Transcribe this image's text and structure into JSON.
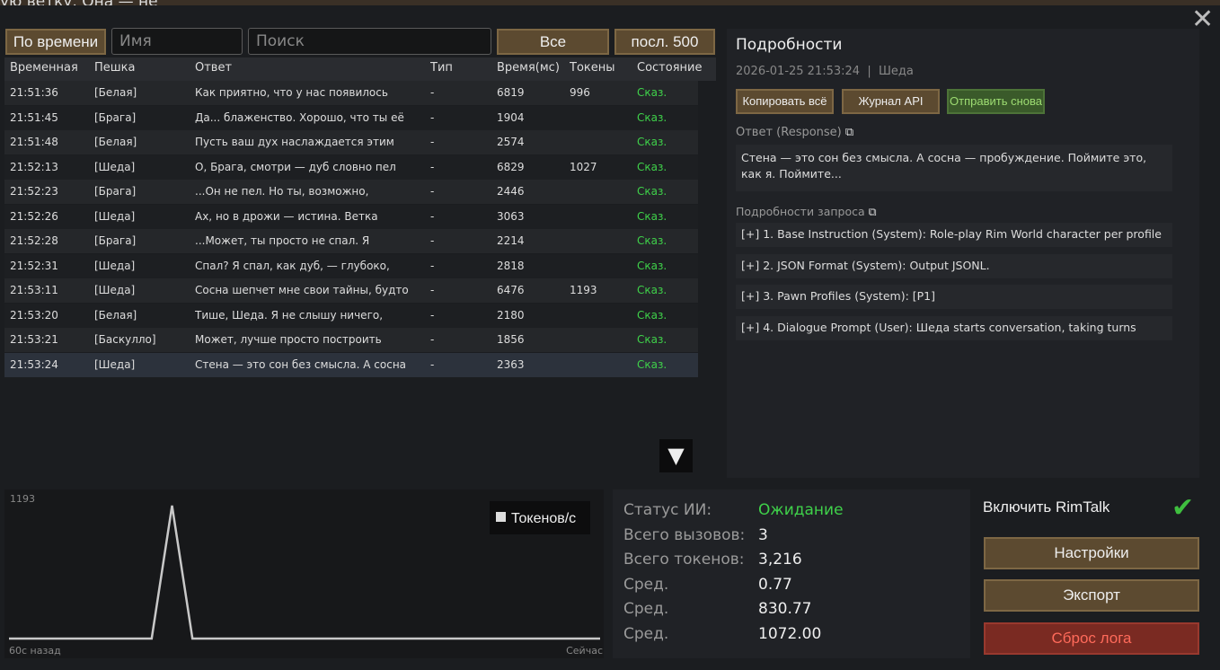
{
  "background_text": "ую ветку. Она — не",
  "toolbar": {
    "sort_button": "По времени",
    "name_placeholder": "Имя",
    "search_placeholder": "Поиск",
    "filter_button": "Все",
    "limit_button": "посл. 500"
  },
  "table": {
    "headers": [
      "Временная",
      "Пешка",
      "Ответ",
      "Тип",
      "Время(мс)",
      "Токены",
      "Состояние"
    ],
    "rows": [
      [
        "21:51:36",
        "[Белая]",
        "Как приятно, что у нас появилось",
        "-",
        6819,
        996,
        "Сказ."
      ],
      [
        "21:51:45",
        "[Брага]",
        "Да... блаженство. Хорошо, что ты её",
        "-",
        1904,
        null,
        "Сказ."
      ],
      [
        "21:51:48",
        "[Белая]",
        "Пусть ваш дух наслаждается этим",
        "-",
        2574,
        null,
        "Сказ."
      ],
      [
        "21:52:13",
        "[Шеда]",
        "О, Брага, смотри — дуб словно пел",
        "-",
        6829,
        1027,
        "Сказ."
      ],
      [
        "21:52:23",
        "[Брага]",
        "...Он не пел. Но ты, возможно,",
        "-",
        2446,
        null,
        "Сказ."
      ],
      [
        "21:52:26",
        "[Шеда]",
        "Ах, но в дрожи — истина. Ветка",
        "-",
        3063,
        null,
        "Сказ."
      ],
      [
        "21:52:28",
        "[Брага]",
        "...Может, ты просто не спал. Я",
        "-",
        2214,
        null,
        "Сказ."
      ],
      [
        "21:52:31",
        "[Шеда]",
        "Спал? Я спал, как дуб, — глубоко,",
        "-",
        2818,
        null,
        "Сказ."
      ],
      [
        "21:53:11",
        "[Шеда]",
        "Сосна шепчет мне свои тайны, будто",
        "-",
        6476,
        1193,
        "Сказ."
      ],
      [
        "21:53:20",
        "[Белая]",
        "Тише, Шеда. Я не слышу ничего,",
        "-",
        2180,
        null,
        "Сказ."
      ],
      [
        "21:53:21",
        "[Баскулло]",
        "Может, лучше просто построить",
        "-",
        1856,
        null,
        "Сказ."
      ],
      [
        "21:53:24",
        "[Шеда]",
        "Стена — это сон без смысла. А сосна",
        "-",
        2363,
        null,
        "Сказ."
      ]
    ]
  },
  "details": {
    "title": "Подробности",
    "timestamp": "2026-01-25 21:53:24",
    "pawn": "Шеда",
    "buttons": [
      "Копировать всё",
      "Журнал API",
      "Отправить снова"
    ],
    "response_label": "Ответ (Response)",
    "response_text": "Стена — это сон без смысла. А сосна — пробуждение. Поймите это, как я. Поймите...",
    "request_label": "Подробности запроса",
    "request_items": [
      "[+] 1. Base Instruction (System): Role-play Rim World character per profile",
      "[+] 2. JSON Format (System): Output JSONL.",
      "[+] 3. Pawn Profiles (System): [P1]",
      "[+] 4. Dialogue Prompt (User): Шеда starts conversation, taking turns"
    ]
  },
  "chart_data": {
    "type": "line",
    "legend": "Токенов/с",
    "x_start_label": "60с назад",
    "x_end_label": "Сейчас",
    "color": "#c8c8c8",
    "values": [
      0,
      0,
      0,
      0,
      0,
      0,
      0,
      0,
      1193,
      0,
      0,
      0,
      0,
      0,
      0,
      0,
      0,
      0,
      0,
      0,
      0,
      0,
      0,
      0,
      0,
      0,
      0,
      0,
      0,
      0
    ],
    "ylim": [
      0,
      1193
    ],
    "yticks": [
      1193
    ]
  },
  "stats": [
    [
      "Статус ИИ:",
      "Ожидание"
    ],
    [
      "Всего вызовов:",
      3
    ],
    [
      "Всего токенов:",
      "3,216"
    ],
    [
      "Сред.",
      0.77
    ],
    [
      "Сред.",
      830.77
    ],
    [
      "Сред.",
      "1072.00"
    ]
  ],
  "controls": {
    "enable_label": "Включить RimTalk",
    "buttons": [
      "Настройки",
      "Экспорт",
      "Сброс лога"
    ]
  }
}
